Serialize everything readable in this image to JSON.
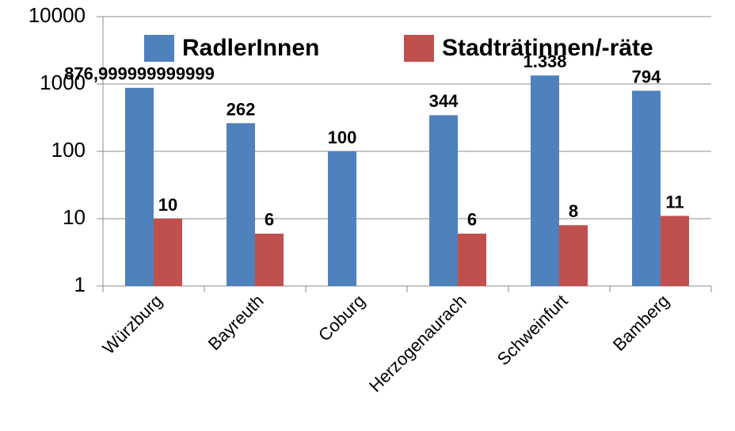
{
  "chart_data": {
    "type": "bar",
    "categories": [
      "Würzburg",
      "Bayreuth",
      "Coburg",
      "Herzogenaurach",
      "Schweinfurt",
      "Bamberg"
    ],
    "series": [
      {
        "name": "RadlerInnen",
        "color": "#4f81bd",
        "values": [
          876.999999999999,
          262,
          100,
          344,
          1338,
          794
        ],
        "value_labels": [
          "876,999999999999",
          "262",
          "100",
          "344",
          "1.338",
          "794"
        ]
      },
      {
        "name": "Stadträtinnen/-räte",
        "color": "#c0504d",
        "values": [
          10,
          6,
          null,
          6,
          8,
          11
        ]
      }
    ],
    "log_scale": true,
    "ylim": [
      1,
      10000
    ],
    "yticks": [
      1,
      10,
      100,
      1000,
      10000
    ],
    "grid": true,
    "legend": "top"
  }
}
